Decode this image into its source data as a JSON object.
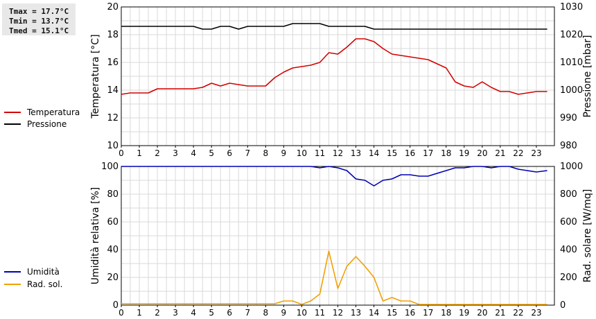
{
  "stats": {
    "tmax": "Tmax = 17.7°C",
    "tmin": "Tmin = 13.7°C",
    "tmed": "Tmed = 15.1°C"
  },
  "legend": {
    "temperature": "Temperatura",
    "pressure": "Pressione",
    "humidity": "Umidità",
    "radiation": "Rad. sol."
  },
  "colors": {
    "temperature": "#d40000",
    "pressure": "#000000",
    "humidity": "#0000b4",
    "radiation": "#f0a000",
    "grid": "#d9d9d9"
  },
  "chart_data": [
    {
      "type": "line",
      "xlabel": "",
      "xlim": [
        0,
        24
      ],
      "xticks": [
        "0",
        "1",
        "2",
        "3",
        "4",
        "5",
        "6",
        "7",
        "8",
        "9",
        "10",
        "11",
        "12",
        "13",
        "14",
        "15",
        "16",
        "17",
        "18",
        "19",
        "20",
        "21",
        "22",
        "23"
      ],
      "left_axis": {
        "label": "Temperatura [°C]",
        "ylim": [
          10,
          20
        ],
        "ticks": [
          "10",
          "12",
          "14",
          "16",
          "18",
          "20"
        ]
      },
      "right_axis": {
        "label": "Pressione [mbar]",
        "ylim": [
          980,
          1030
        ],
        "ticks": [
          "980",
          "990",
          "1000",
          "1010",
          "1020",
          "1030"
        ]
      },
      "grid": true,
      "series": [
        {
          "name": "Temperatura",
          "axis": "left",
          "x": [
            0,
            0.5,
            1,
            1.5,
            2,
            2.5,
            3,
            3.5,
            4,
            4.5,
            5,
            5.5,
            6,
            6.5,
            7,
            7.5,
            8,
            8.5,
            9,
            9.5,
            10,
            10.5,
            11,
            11.5,
            12,
            12.5,
            13,
            13.5,
            14,
            14.5,
            15,
            15.5,
            16,
            16.5,
            17,
            17.5,
            18,
            18.5,
            19,
            19.5,
            20,
            20.5,
            21,
            21.5,
            22,
            22.5,
            23,
            23.6
          ],
          "y": [
            13.7,
            13.8,
            13.8,
            13.8,
            14.1,
            14.1,
            14.1,
            14.1,
            14.1,
            14.2,
            14.5,
            14.3,
            14.5,
            14.4,
            14.3,
            14.3,
            14.3,
            14.9,
            15.3,
            15.6,
            15.7,
            15.8,
            16.0,
            16.7,
            16.6,
            17.1,
            17.7,
            17.7,
            17.5,
            17.0,
            16.6,
            16.5,
            16.4,
            16.3,
            16.2,
            15.9,
            15.6,
            14.6,
            14.3,
            14.2,
            14.6,
            14.2,
            13.9,
            13.9,
            13.7,
            13.8,
            13.9,
            13.9
          ]
        },
        {
          "name": "Pressione",
          "axis": "right",
          "x": [
            0,
            0.5,
            1,
            1.5,
            2,
            2.5,
            3,
            3.5,
            4,
            4.5,
            5,
            5.5,
            6,
            6.5,
            7,
            7.5,
            8,
            8.5,
            9,
            9.5,
            10,
            10.5,
            11,
            11.5,
            12,
            12.5,
            13,
            13.5,
            14,
            14.5,
            15,
            15.5,
            16,
            16.5,
            17,
            17.5,
            18,
            18.5,
            19,
            19.5,
            20,
            20.5,
            21,
            21.5,
            22,
            22.5,
            23,
            23.6
          ],
          "y": [
            1023,
            1023,
            1023,
            1023,
            1023,
            1023,
            1023,
            1023,
            1023,
            1022,
            1022,
            1023,
            1023,
            1022,
            1023,
            1023,
            1023,
            1023,
            1023,
            1024,
            1024,
            1024,
            1024,
            1023,
            1023,
            1023,
            1023,
            1023,
            1022,
            1022,
            1022,
            1022,
            1022,
            1022,
            1022,
            1022,
            1022,
            1022,
            1022,
            1022,
            1022,
            1022,
            1022,
            1022,
            1022,
            1022,
            1022,
            1022
          ]
        }
      ]
    },
    {
      "type": "line",
      "xlabel": "",
      "xlim": [
        0,
        24
      ],
      "xticks": [
        "0",
        "1",
        "2",
        "3",
        "4",
        "5",
        "6",
        "7",
        "8",
        "9",
        "10",
        "11",
        "12",
        "13",
        "14",
        "15",
        "16",
        "17",
        "18",
        "19",
        "20",
        "21",
        "22",
        "23"
      ],
      "left_axis": {
        "label": "Umidità relativa [%]",
        "ylim": [
          0,
          100
        ],
        "ticks": [
          "0",
          "20",
          "40",
          "60",
          "80",
          "100"
        ]
      },
      "right_axis": {
        "label": "Rad. solare [W/mq]",
        "ylim": [
          0,
          1000
        ],
        "ticks": [
          "0",
          "200",
          "400",
          "600",
          "800",
          "1000"
        ]
      },
      "grid": true,
      "series": [
        {
          "name": "Umidità",
          "axis": "left",
          "x": [
            0,
            1,
            2,
            3,
            4,
            5,
            6,
            7,
            8,
            9,
            10,
            10.5,
            11,
            11.5,
            12,
            12.5,
            13,
            13.5,
            14,
            14.5,
            15,
            15.5,
            16,
            16.5,
            17,
            17.5,
            18,
            18.5,
            19,
            19.5,
            20,
            20.5,
            21,
            21.5,
            22,
            22.5,
            23,
            23.6
          ],
          "y": [
            100,
            100,
            100,
            100,
            100,
            100,
            100,
            100,
            100,
            100,
            100,
            100,
            99,
            100,
            99,
            97,
            91,
            90,
            86,
            90,
            91,
            94,
            94,
            93,
            93,
            95,
            97,
            99,
            99,
            100,
            100,
            99,
            100,
            100,
            98,
            97,
            96,
            97
          ]
        },
        {
          "name": "Rad. sol.",
          "axis": "right",
          "x": [
            0,
            1,
            2,
            3,
            4,
            5,
            6,
            7,
            8,
            8.5,
            9,
            9.5,
            10,
            10.5,
            11,
            11.5,
            12,
            12.5,
            13,
            13.5,
            14,
            14.5,
            15,
            15.5,
            16,
            16.5,
            17,
            18,
            19,
            20,
            21,
            22,
            23,
            23.6
          ],
          "y": [
            10,
            10,
            10,
            10,
            10,
            10,
            10,
            10,
            10,
            10,
            30,
            30,
            5,
            30,
            80,
            390,
            120,
            280,
            350,
            280,
            200,
            30,
            55,
            30,
            30,
            5,
            5,
            5,
            5,
            5,
            5,
            5,
            5,
            5
          ]
        }
      ]
    }
  ]
}
